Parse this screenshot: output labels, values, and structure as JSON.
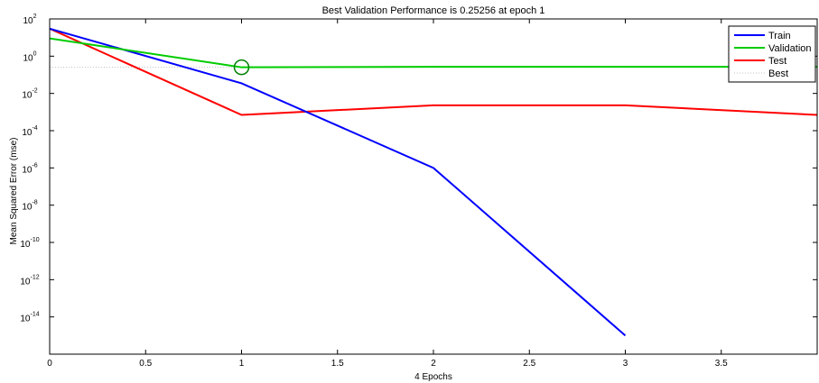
{
  "chart_data": {
    "type": "line",
    "title": "Best Validation Performance is 0.25256 at epoch 1",
    "xlabel": "4 Epochs",
    "ylabel": "Mean Squared Error  (mse)",
    "y_scale": "log",
    "xlim": [
      0,
      4
    ],
    "ylim": [
      1e-16,
      100
    ],
    "x_ticks": [
      0,
      0.5,
      1,
      1.5,
      2,
      2.5,
      3,
      3.5
    ],
    "x_tick_labels": [
      "0",
      "0.5",
      "1",
      "1.5",
      "2",
      "2.5",
      "3",
      "3.5"
    ],
    "y_tick_exponents": [
      "2",
      "0",
      "-2",
      "-4",
      "-6",
      "-8",
      "-10",
      "-12",
      "-14"
    ],
    "y_tick_base": "10",
    "grid": false,
    "legend_position": "top-right",
    "series": [
      {
        "name": "Train",
        "color": "#0000ff",
        "x": [
          0,
          1,
          2,
          3
        ],
        "y": [
          30,
          0.035,
          1e-06,
          1e-15
        ]
      },
      {
        "name": "Validation",
        "color": "#00cc00",
        "x": [
          0,
          1,
          2,
          3,
          4
        ],
        "y": [
          9,
          0.25256,
          0.27,
          0.27,
          0.27
        ]
      },
      {
        "name": "Test",
        "color": "#ff0000",
        "x": [
          0,
          1,
          2,
          3,
          4
        ],
        "y": [
          30,
          0.0007,
          0.0023,
          0.0023,
          0.0007
        ]
      }
    ],
    "best": {
      "name": "Best",
      "color": "#c0c0c0",
      "y": 0.25256,
      "x_marker": 1,
      "marker_color": "#008000"
    }
  }
}
